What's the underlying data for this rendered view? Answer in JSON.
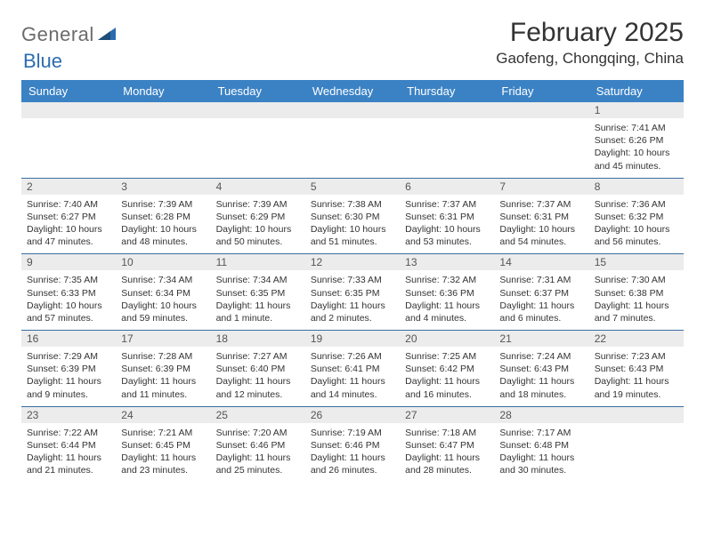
{
  "logo": {
    "text1": "General",
    "text2": "Blue"
  },
  "title": "February 2025",
  "location": "Gaofeng, Chongqing, China",
  "colors": {
    "headerBg": "#3b82c4",
    "headerText": "#ffffff",
    "daynumBg": "#ececec",
    "weekDivider": "#3b6ea0",
    "logoGray": "#6b6b6b",
    "logoBlue": "#2b6cb0"
  },
  "dayNames": [
    "Sunday",
    "Monday",
    "Tuesday",
    "Wednesday",
    "Thursday",
    "Friday",
    "Saturday"
  ],
  "weeks": [
    [
      {
        "day": "",
        "sunrise": "",
        "sunset": "",
        "daylight": ""
      },
      {
        "day": "",
        "sunrise": "",
        "sunset": "",
        "daylight": ""
      },
      {
        "day": "",
        "sunrise": "",
        "sunset": "",
        "daylight": ""
      },
      {
        "day": "",
        "sunrise": "",
        "sunset": "",
        "daylight": ""
      },
      {
        "day": "",
        "sunrise": "",
        "sunset": "",
        "daylight": ""
      },
      {
        "day": "",
        "sunrise": "",
        "sunset": "",
        "daylight": ""
      },
      {
        "day": "1",
        "sunrise": "Sunrise: 7:41 AM",
        "sunset": "Sunset: 6:26 PM",
        "daylight": "Daylight: 10 hours and 45 minutes."
      }
    ],
    [
      {
        "day": "2",
        "sunrise": "Sunrise: 7:40 AM",
        "sunset": "Sunset: 6:27 PM",
        "daylight": "Daylight: 10 hours and 47 minutes."
      },
      {
        "day": "3",
        "sunrise": "Sunrise: 7:39 AM",
        "sunset": "Sunset: 6:28 PM",
        "daylight": "Daylight: 10 hours and 48 minutes."
      },
      {
        "day": "4",
        "sunrise": "Sunrise: 7:39 AM",
        "sunset": "Sunset: 6:29 PM",
        "daylight": "Daylight: 10 hours and 50 minutes."
      },
      {
        "day": "5",
        "sunrise": "Sunrise: 7:38 AM",
        "sunset": "Sunset: 6:30 PM",
        "daylight": "Daylight: 10 hours and 51 minutes."
      },
      {
        "day": "6",
        "sunrise": "Sunrise: 7:37 AM",
        "sunset": "Sunset: 6:31 PM",
        "daylight": "Daylight: 10 hours and 53 minutes."
      },
      {
        "day": "7",
        "sunrise": "Sunrise: 7:37 AM",
        "sunset": "Sunset: 6:31 PM",
        "daylight": "Daylight: 10 hours and 54 minutes."
      },
      {
        "day": "8",
        "sunrise": "Sunrise: 7:36 AM",
        "sunset": "Sunset: 6:32 PM",
        "daylight": "Daylight: 10 hours and 56 minutes."
      }
    ],
    [
      {
        "day": "9",
        "sunrise": "Sunrise: 7:35 AM",
        "sunset": "Sunset: 6:33 PM",
        "daylight": "Daylight: 10 hours and 57 minutes."
      },
      {
        "day": "10",
        "sunrise": "Sunrise: 7:34 AM",
        "sunset": "Sunset: 6:34 PM",
        "daylight": "Daylight: 10 hours and 59 minutes."
      },
      {
        "day": "11",
        "sunrise": "Sunrise: 7:34 AM",
        "sunset": "Sunset: 6:35 PM",
        "daylight": "Daylight: 11 hours and 1 minute."
      },
      {
        "day": "12",
        "sunrise": "Sunrise: 7:33 AM",
        "sunset": "Sunset: 6:35 PM",
        "daylight": "Daylight: 11 hours and 2 minutes."
      },
      {
        "day": "13",
        "sunrise": "Sunrise: 7:32 AM",
        "sunset": "Sunset: 6:36 PM",
        "daylight": "Daylight: 11 hours and 4 minutes."
      },
      {
        "day": "14",
        "sunrise": "Sunrise: 7:31 AM",
        "sunset": "Sunset: 6:37 PM",
        "daylight": "Daylight: 11 hours and 6 minutes."
      },
      {
        "day": "15",
        "sunrise": "Sunrise: 7:30 AM",
        "sunset": "Sunset: 6:38 PM",
        "daylight": "Daylight: 11 hours and 7 minutes."
      }
    ],
    [
      {
        "day": "16",
        "sunrise": "Sunrise: 7:29 AM",
        "sunset": "Sunset: 6:39 PM",
        "daylight": "Daylight: 11 hours and 9 minutes."
      },
      {
        "day": "17",
        "sunrise": "Sunrise: 7:28 AM",
        "sunset": "Sunset: 6:39 PM",
        "daylight": "Daylight: 11 hours and 11 minutes."
      },
      {
        "day": "18",
        "sunrise": "Sunrise: 7:27 AM",
        "sunset": "Sunset: 6:40 PM",
        "daylight": "Daylight: 11 hours and 12 minutes."
      },
      {
        "day": "19",
        "sunrise": "Sunrise: 7:26 AM",
        "sunset": "Sunset: 6:41 PM",
        "daylight": "Daylight: 11 hours and 14 minutes."
      },
      {
        "day": "20",
        "sunrise": "Sunrise: 7:25 AM",
        "sunset": "Sunset: 6:42 PM",
        "daylight": "Daylight: 11 hours and 16 minutes."
      },
      {
        "day": "21",
        "sunrise": "Sunrise: 7:24 AM",
        "sunset": "Sunset: 6:43 PM",
        "daylight": "Daylight: 11 hours and 18 minutes."
      },
      {
        "day": "22",
        "sunrise": "Sunrise: 7:23 AM",
        "sunset": "Sunset: 6:43 PM",
        "daylight": "Daylight: 11 hours and 19 minutes."
      }
    ],
    [
      {
        "day": "23",
        "sunrise": "Sunrise: 7:22 AM",
        "sunset": "Sunset: 6:44 PM",
        "daylight": "Daylight: 11 hours and 21 minutes."
      },
      {
        "day": "24",
        "sunrise": "Sunrise: 7:21 AM",
        "sunset": "Sunset: 6:45 PM",
        "daylight": "Daylight: 11 hours and 23 minutes."
      },
      {
        "day": "25",
        "sunrise": "Sunrise: 7:20 AM",
        "sunset": "Sunset: 6:46 PM",
        "daylight": "Daylight: 11 hours and 25 minutes."
      },
      {
        "day": "26",
        "sunrise": "Sunrise: 7:19 AM",
        "sunset": "Sunset: 6:46 PM",
        "daylight": "Daylight: 11 hours and 26 minutes."
      },
      {
        "day": "27",
        "sunrise": "Sunrise: 7:18 AM",
        "sunset": "Sunset: 6:47 PM",
        "daylight": "Daylight: 11 hours and 28 minutes."
      },
      {
        "day": "28",
        "sunrise": "Sunrise: 7:17 AM",
        "sunset": "Sunset: 6:48 PM",
        "daylight": "Daylight: 11 hours and 30 minutes."
      },
      {
        "day": "",
        "sunrise": "",
        "sunset": "",
        "daylight": ""
      }
    ]
  ]
}
